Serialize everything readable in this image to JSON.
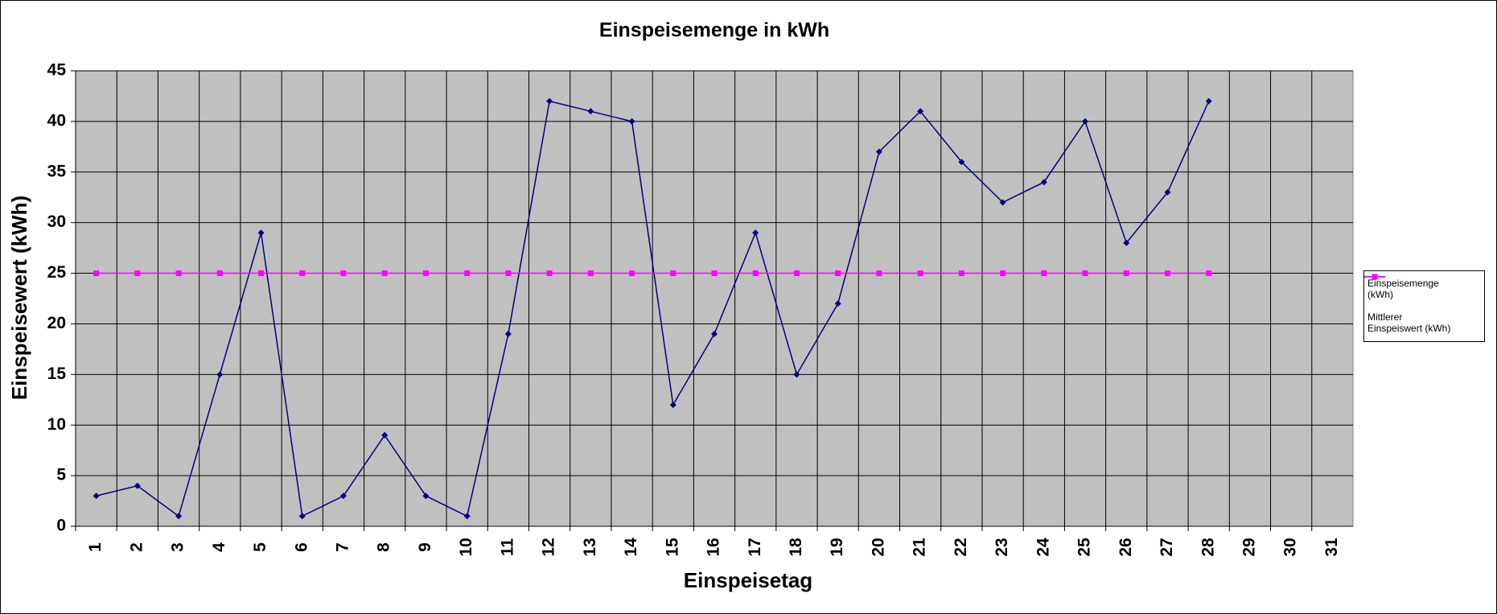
{
  "chart_data": {
    "type": "line",
    "title": "Einspeisemenge in kWh",
    "x_label": "Einspeisetag",
    "y_label": "Einspeisewert  (kWh)",
    "categories": [
      "1",
      "2",
      "3",
      "4",
      "5",
      "6",
      "7",
      "8",
      "9",
      "10",
      "11",
      "12",
      "13",
      "14",
      "15",
      "16",
      "17",
      "18",
      "19",
      "20",
      "21",
      "22",
      "23",
      "24",
      "25",
      "26",
      "27",
      "28",
      "29",
      "30",
      "31"
    ],
    "series": [
      {
        "name": "Einspeisemenge (kWh)",
        "color": "#000080",
        "marker": "diamond",
        "values": [
          3,
          4,
          1,
          15,
          29,
          1,
          3,
          9,
          3,
          1,
          19,
          42,
          41,
          40,
          12,
          19,
          29,
          15,
          22,
          37,
          41,
          36,
          32,
          34,
          40,
          28,
          33,
          42,
          null,
          null,
          null
        ]
      },
      {
        "name": "Mittlerer Einspeiswert (kWh)",
        "color": "#ff00ff",
        "marker": "square",
        "values": [
          25,
          25,
          25,
          25,
          25,
          25,
          25,
          25,
          25,
          25,
          25,
          25,
          25,
          25,
          25,
          25,
          25,
          25,
          25,
          25,
          25,
          25,
          25,
          25,
          25,
          25,
          25,
          25,
          null,
          null,
          null
        ]
      }
    ],
    "ylim": [
      0,
      45
    ],
    "yticks": [
      0,
      5,
      10,
      15,
      20,
      25,
      30,
      35,
      40,
      45
    ],
    "grid": true,
    "plot_background": "#c0c0c0",
    "legend": "right"
  }
}
